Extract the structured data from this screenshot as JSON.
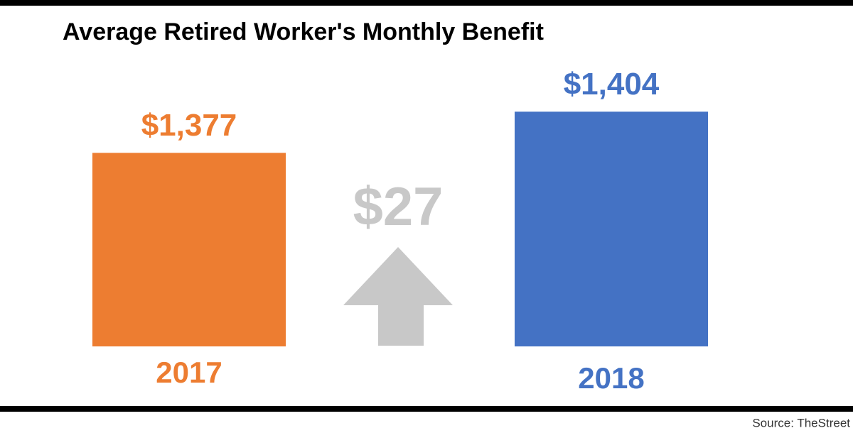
{
  "chart_data": {
    "type": "bar",
    "title": "Average Retired Worker's Monthly Benefit",
    "categories": [
      "2017",
      "2018"
    ],
    "values": [
      1377,
      1404
    ],
    "value_labels": [
      "$1,377",
      "$1,404"
    ],
    "colors": [
      "#ED7D31",
      "#4472C4"
    ],
    "ylim": [
      1250,
      1420
    ],
    "annotation": "$27",
    "source": "Source: TheStreet"
  }
}
